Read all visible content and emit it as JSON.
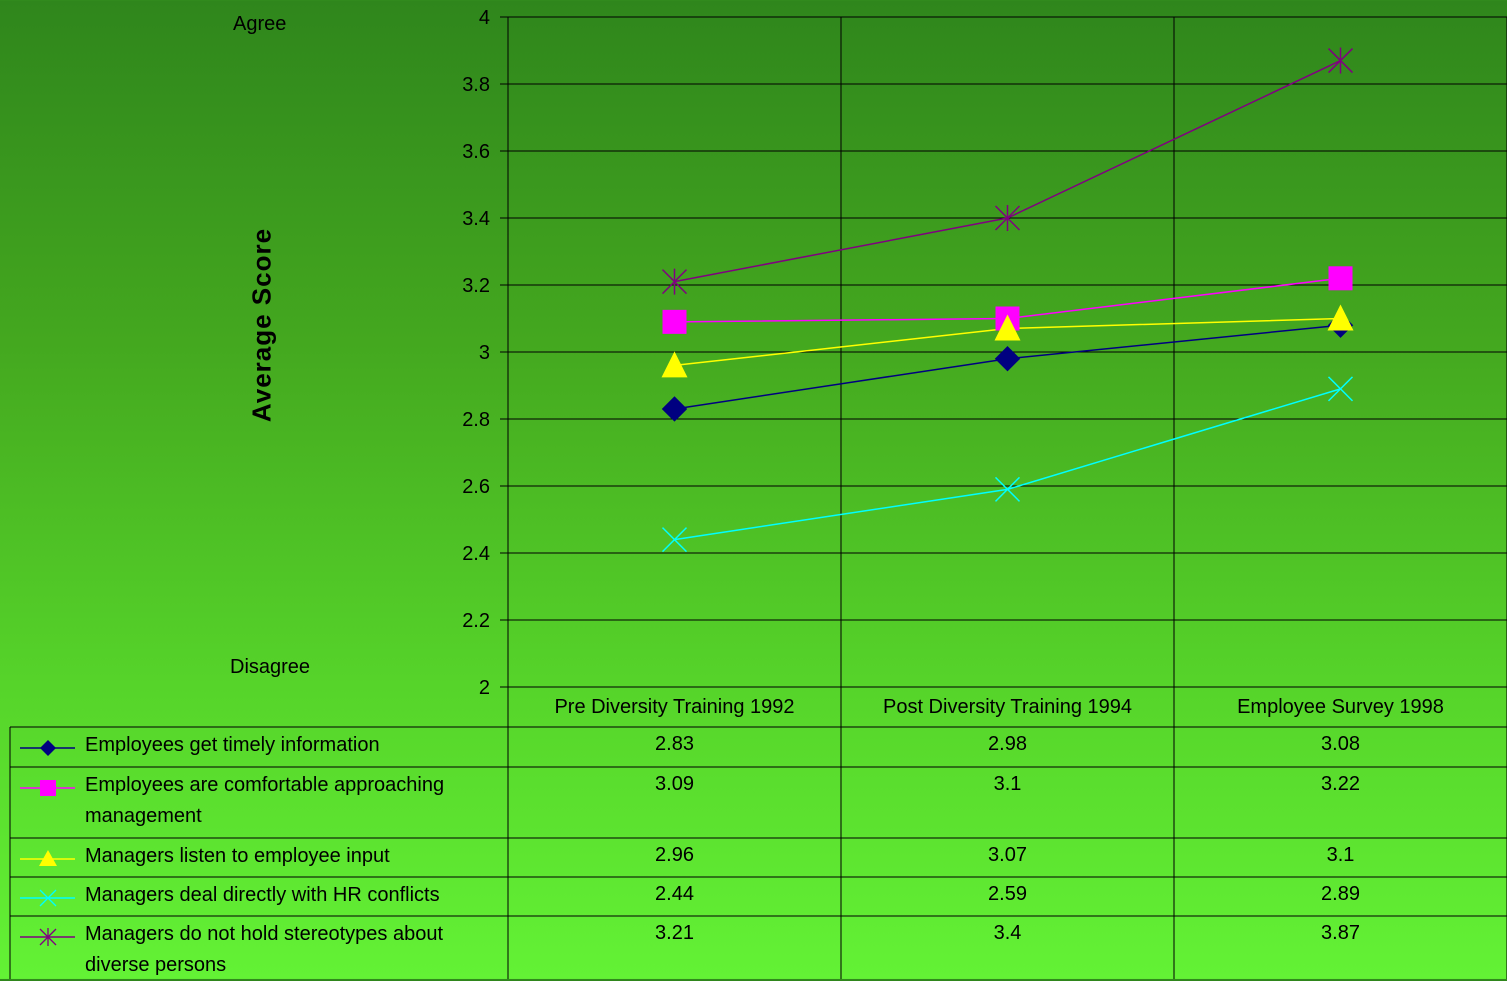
{
  "chart_data": {
    "type": "line",
    "categories": [
      "Pre Diversity Training 1992",
      "Post Diversity Training 1994",
      "Employee Survey 1998"
    ],
    "ylabel": "Average Score",
    "ylim": [
      2,
      4
    ],
    "yticks": [
      "2",
      "2.2",
      "2.4",
      "2.6",
      "2.8",
      "3",
      "3.2",
      "3.4",
      "3.6",
      "3.8",
      "4"
    ],
    "y_top_annotation": "Agree",
    "y_bottom_annotation": "Disagree",
    "grid": true,
    "series": [
      {
        "name": "Employees get timely information",
        "values": [
          2.83,
          2.98,
          3.08
        ],
        "labels": [
          "2.83",
          "2.98",
          "3.08"
        ],
        "color": "#000080",
        "marker": "diamond"
      },
      {
        "name": "Employees are comfortable approaching management",
        "values": [
          3.09,
          3.1,
          3.22
        ],
        "labels": [
          "3.09",
          "3.1",
          "3.22"
        ],
        "color": "#ff00ff",
        "marker": "square"
      },
      {
        "name": "Managers listen to employee input",
        "values": [
          2.96,
          3.07,
          3.1
        ],
        "labels": [
          "2.96",
          "3.07",
          "3.1"
        ],
        "color": "#ffff00",
        "marker": "triangle"
      },
      {
        "name": "Managers deal directly with HR conflicts",
        "values": [
          2.44,
          2.59,
          2.89
        ],
        "labels": [
          "2.44",
          "2.59",
          "2.89"
        ],
        "color": "#00ffff",
        "marker": "x"
      },
      {
        "name": "Managers do not hold stereotypes about diverse persons",
        "values": [
          3.21,
          3.4,
          3.87
        ],
        "labels": [
          "3.21",
          "3.4",
          "3.87"
        ],
        "color": "#800080",
        "marker": "star"
      }
    ]
  }
}
